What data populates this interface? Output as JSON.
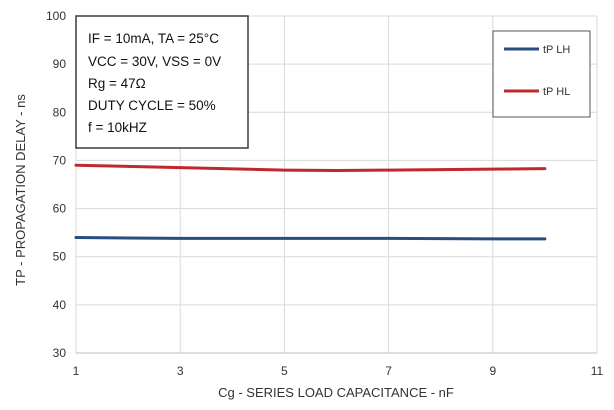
{
  "chart_data": {
    "type": "line",
    "xlabel": "Cg - SERIES LOAD CAPACITANCE - nF",
    "ylabel": "TP - PROPAGATION DELAY - ns",
    "xlim": [
      1,
      11
    ],
    "ylim": [
      30,
      100
    ],
    "x_ticks": [
      "1",
      "3",
      "5",
      "7",
      "9",
      "11"
    ],
    "y_ticks": [
      "30",
      "40",
      "50",
      "60",
      "70",
      "80",
      "90",
      "100"
    ],
    "grid": true,
    "legend_position": "top-right",
    "series": [
      {
        "name": "tP LH",
        "color": "#2a4d7f",
        "x": [
          1,
          3,
          5,
          7,
          9,
          10
        ],
        "y": [
          54.0,
          53.8,
          53.8,
          53.8,
          53.7,
          53.7
        ]
      },
      {
        "name": "tP HL",
        "color": "#c0282d",
        "x": [
          1,
          3,
          5,
          6,
          7,
          9,
          10
        ],
        "y": [
          69.0,
          68.5,
          68.0,
          67.9,
          68.0,
          68.2,
          68.3
        ]
      }
    ],
    "annotations": [
      "IF = 10mA, TA = 25°C",
      "VCC = 30V, VSS = 0V",
      "Rg = 47Ω",
      "DUTY CYCLE = 50%",
      "f = 10kHZ"
    ]
  }
}
